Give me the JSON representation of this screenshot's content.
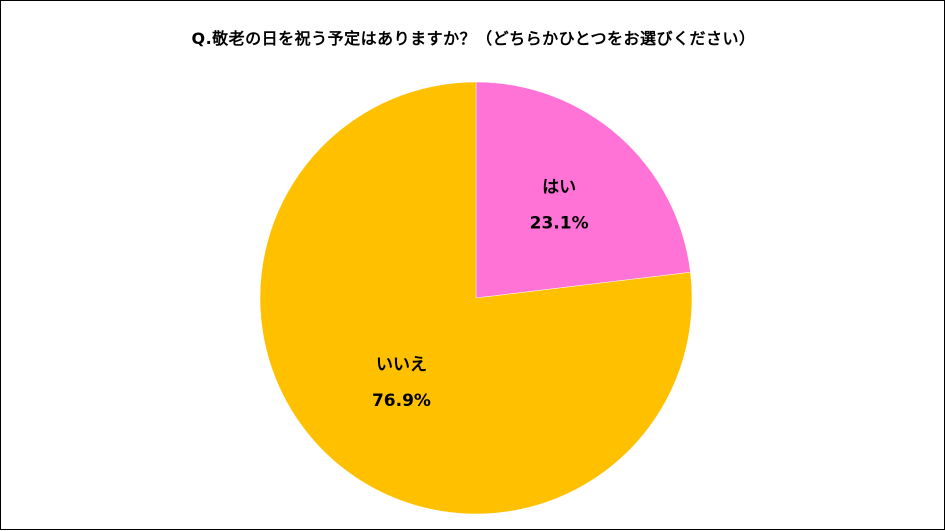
{
  "chart_data": {
    "type": "pie",
    "title": "Q.敬老の日を祝う予定はありますか？（どちらかひとつをお選びください）",
    "slices": [
      {
        "label": "はい",
        "value": 23.1,
        "value_label": "23.1%",
        "color": "#FF73D7"
      },
      {
        "label": "いいえ",
        "value": 76.9,
        "value_label": "76.9%",
        "color": "#FFC000"
      }
    ],
    "start_angle": "12 o'clock",
    "direction": "clockwise",
    "legend": "none"
  }
}
